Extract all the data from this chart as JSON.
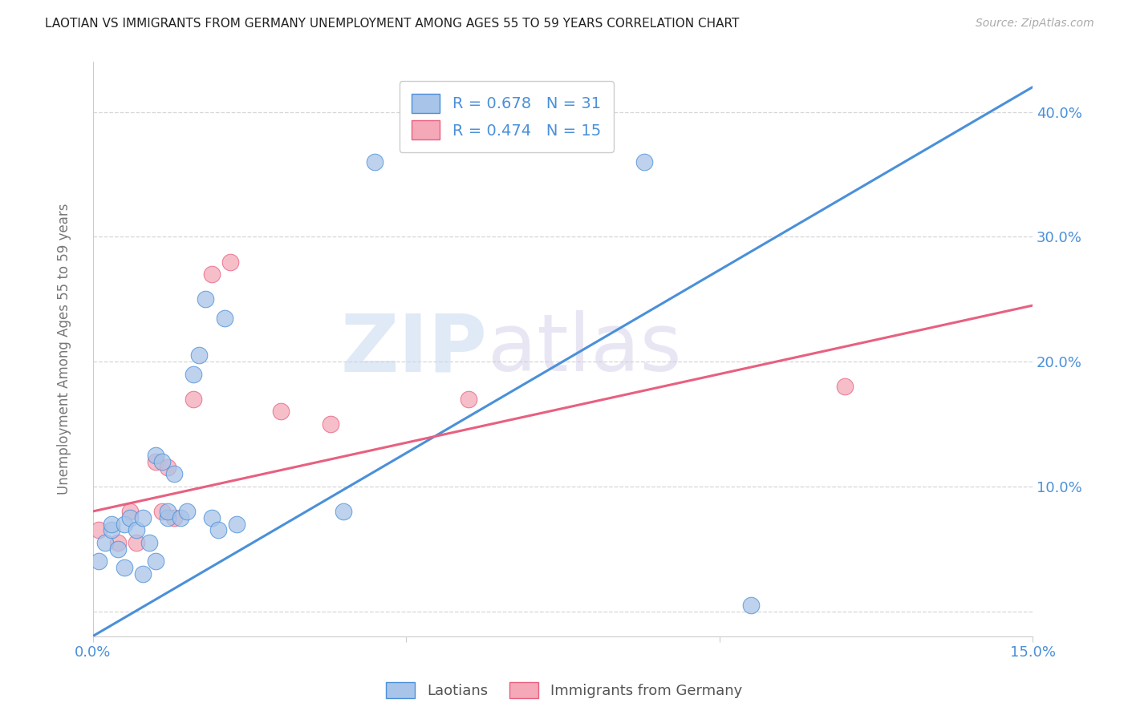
{
  "title": "LAOTIAN VS IMMIGRANTS FROM GERMANY UNEMPLOYMENT AMONG AGES 55 TO 59 YEARS CORRELATION CHART",
  "source": "Source: ZipAtlas.com",
  "ylabel": "Unemployment Among Ages 55 to 59 years",
  "xlim": [
    0.0,
    0.15
  ],
  "ylim": [
    -0.02,
    0.44
  ],
  "yticks": [
    0.0,
    0.1,
    0.2,
    0.3,
    0.4
  ],
  "ytick_labels": [
    "",
    "10.0%",
    "20.0%",
    "30.0%",
    "40.0%"
  ],
  "xtick_positions": [
    0.0,
    0.05,
    0.1,
    0.15
  ],
  "xtick_labels": [
    "0.0%",
    "",
    "",
    "15.0%"
  ],
  "laotian_R": 0.678,
  "laotian_N": 31,
  "german_R": 0.474,
  "german_N": 15,
  "laotian_color": "#a8c4e8",
  "german_color": "#f4a8b8",
  "laotian_line_color": "#4a90d9",
  "german_line_color": "#e86080",
  "laotian_x": [
    0.001,
    0.002,
    0.003,
    0.003,
    0.004,
    0.005,
    0.005,
    0.006,
    0.007,
    0.008,
    0.008,
    0.009,
    0.01,
    0.01,
    0.011,
    0.012,
    0.012,
    0.013,
    0.014,
    0.015,
    0.016,
    0.017,
    0.018,
    0.019,
    0.02,
    0.021,
    0.023,
    0.04,
    0.045,
    0.088,
    0.105
  ],
  "laotian_y": [
    0.04,
    0.055,
    0.065,
    0.07,
    0.05,
    0.035,
    0.07,
    0.075,
    0.065,
    0.03,
    0.075,
    0.055,
    0.04,
    0.125,
    0.12,
    0.075,
    0.08,
    0.11,
    0.075,
    0.08,
    0.19,
    0.205,
    0.25,
    0.075,
    0.065,
    0.235,
    0.07,
    0.08,
    0.36,
    0.36,
    0.005
  ],
  "german_x": [
    0.001,
    0.004,
    0.006,
    0.007,
    0.01,
    0.011,
    0.012,
    0.013,
    0.016,
    0.019,
    0.022,
    0.03,
    0.038,
    0.06,
    0.12
  ],
  "german_y": [
    0.065,
    0.055,
    0.08,
    0.055,
    0.12,
    0.08,
    0.115,
    0.075,
    0.17,
    0.27,
    0.28,
    0.16,
    0.15,
    0.17,
    0.18
  ],
  "laotian_line_x": [
    0.0,
    0.15
  ],
  "laotian_line_y": [
    -0.02,
    0.42
  ],
  "german_line_x": [
    0.0,
    0.15
  ],
  "german_line_y": [
    0.08,
    0.245
  ],
  "watermark_zip": "ZIP",
  "watermark_atlas": "atlas",
  "background_color": "#ffffff",
  "grid_color": "#cccccc",
  "title_color": "#222222",
  "tick_label_color": "#4a90d9",
  "ylabel_color": "#777777",
  "legend_label_laotian": "Laotians",
  "legend_label_german": "Immigrants from Germany"
}
